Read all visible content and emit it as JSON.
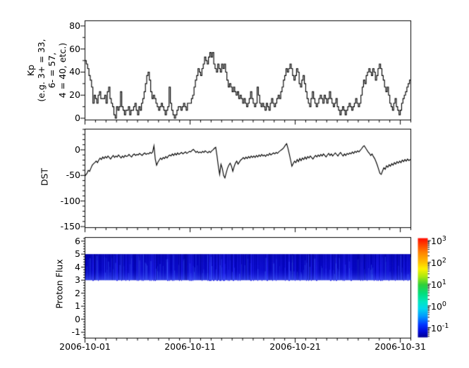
{
  "panels": {
    "kp": {
      "ylabel": "Kp\n(e.g. 3+ = 33,\n6- = 57,\n4 = 40, etc.)",
      "yticks": [
        "80",
        "60",
        "40",
        "20",
        "0"
      ]
    },
    "dst": {
      "ylabel": "DST",
      "yticks": [
        "0",
        "-50",
        "-100",
        "-150"
      ]
    },
    "proton": {
      "ylabel": "Proton Flux",
      "yticks": [
        "6",
        "5",
        "4",
        "3",
        "2",
        "1",
        "0",
        "-1"
      ]
    }
  },
  "xaxis": {
    "ticks": [
      "2006-10-01",
      "2006-10-11",
      "2006-10-21",
      "2006-10-31"
    ]
  },
  "colorbar": {
    "ticks": [
      {
        "base": "10",
        "exp": "3"
      },
      {
        "base": "10",
        "exp": "2"
      },
      {
        "base": "10",
        "exp": "1"
      },
      {
        "base": "10",
        "exp": "0"
      },
      {
        "base": "10",
        "exp": "-1"
      }
    ]
  },
  "chart_data": [
    {
      "type": "line",
      "title": "Kp index",
      "ylabel": "Kp (e.g. 3+ = 33, 6- = 57, 4 = 40, etc.)",
      "step": true,
      "x_start": "2006-10-01T00:00",
      "x_end": "2006-11-01T00:00",
      "cadence_hours": 3,
      "ylim": [
        -2,
        85
      ],
      "yticks": [
        0,
        20,
        40,
        60,
        80
      ],
      "xtick_labels": [
        "2006-10-01",
        "2006-10-11",
        "2006-10-21",
        "2006-10-31"
      ],
      "values": [
        50,
        47,
        43,
        37,
        33,
        27,
        13,
        20,
        17,
        13,
        20,
        23,
        17,
        17,
        17,
        20,
        13,
        23,
        27,
        17,
        13,
        10,
        3,
        0,
        10,
        7,
        10,
        23,
        10,
        7,
        3,
        7,
        7,
        10,
        3,
        7,
        7,
        10,
        13,
        7,
        3,
        10,
        7,
        13,
        17,
        23,
        30,
        37,
        40,
        33,
        23,
        17,
        20,
        17,
        13,
        10,
        7,
        10,
        13,
        10,
        7,
        3,
        7,
        10,
        27,
        13,
        7,
        3,
        0,
        3,
        7,
        10,
        10,
        7,
        10,
        13,
        10,
        7,
        13,
        13,
        13,
        17,
        20,
        27,
        33,
        37,
        43,
        40,
        37,
        43,
        47,
        53,
        50,
        47,
        53,
        57,
        53,
        57,
        47,
        43,
        40,
        47,
        43,
        40,
        47,
        43,
        47,
        40,
        33,
        27,
        30,
        27,
        23,
        27,
        23,
        20,
        23,
        17,
        20,
        17,
        13,
        17,
        13,
        10,
        13,
        17,
        23,
        17,
        13,
        10,
        13,
        27,
        20,
        13,
        10,
        13,
        10,
        7,
        13,
        10,
        7,
        13,
        17,
        13,
        10,
        13,
        17,
        20,
        17,
        23,
        27,
        33,
        37,
        43,
        40,
        43,
        47,
        43,
        37,
        33,
        37,
        43,
        40,
        30,
        27,
        33,
        37,
        30,
        23,
        17,
        13,
        10,
        17,
        23,
        17,
        13,
        10,
        13,
        17,
        20,
        17,
        13,
        20,
        17,
        13,
        17,
        23,
        17,
        13,
        10,
        13,
        17,
        10,
        7,
        3,
        7,
        10,
        7,
        3,
        7,
        10,
        13,
        10,
        7,
        10,
        13,
        17,
        13,
        10,
        13,
        20,
        27,
        33,
        30,
        37,
        40,
        43,
        40,
        37,
        43,
        40,
        33,
        37,
        43,
        47,
        43,
        37,
        33,
        27,
        23,
        27,
        20,
        13,
        10,
        7,
        13,
        17,
        10,
        7,
        3,
        7,
        13,
        17,
        20,
        23,
        27,
        30,
        33
      ]
    },
    {
      "type": "line",
      "title": "DST",
      "ylabel": "DST",
      "x_start": "2006-10-01T00:00",
      "x_end": "2006-11-01T00:00",
      "cadence_hours": 3,
      "ylim": [
        -152,
        41
      ],
      "yticks": [
        0,
        -50,
        -100,
        -150
      ],
      "xtick_labels": [
        "2006-10-01",
        "2006-10-11",
        "2006-10-21",
        "2006-10-31"
      ],
      "values": [
        -51,
        -46,
        -40,
        -42,
        -36,
        -30,
        -27,
        -25,
        -22,
        -25,
        -20,
        -16,
        -19,
        -14,
        -17,
        -13,
        -16,
        -12,
        -15,
        -18,
        -14,
        -11,
        -15,
        -12,
        -14,
        -10,
        -13,
        -16,
        -12,
        -15,
        -11,
        -13,
        -12,
        -9,
        -12,
        -14,
        -10,
        -8,
        -11,
        -9,
        -10,
        -7,
        -9,
        -11,
        -8,
        -6,
        -9,
        -7,
        -8,
        -5,
        -7,
        -4,
        8,
        -18,
        -30,
        -24,
        -20,
        -16,
        -19,
        -15,
        -17,
        -13,
        -16,
        -12,
        -10,
        -12,
        -8,
        -11,
        -7,
        -10,
        -6,
        -9,
        -7,
        -5,
        -8,
        -6,
        -4,
        -7,
        -5,
        -3,
        -4,
        -1,
        1,
        -2,
        -5,
        -3,
        -6,
        -4,
        -6,
        -3,
        -5,
        -2,
        -4,
        -6,
        -3,
        -5,
        -2,
        0,
        3,
        5,
        -12,
        -32,
        -48,
        -28,
        -36,
        -50,
        -55,
        -45,
        -36,
        -30,
        -26,
        -32,
        -42,
        -33,
        -26,
        -22,
        -28,
        -24,
        -20,
        -18,
        -15,
        -18,
        -14,
        -17,
        -13,
        -16,
        -12,
        -15,
        -12,
        -15,
        -11,
        -14,
        -10,
        -13,
        -9,
        -12,
        -10,
        -13,
        -9,
        -11,
        -7,
        -10,
        -8,
        -6,
        -8,
        -5,
        -7,
        -4,
        -2,
        0,
        2,
        5,
        9,
        12,
        3,
        -8,
        -20,
        -32,
        -27,
        -22,
        -25,
        -19,
        -23,
        -17,
        -21,
        -16,
        -19,
        -14,
        -18,
        -13,
        -16,
        -12,
        -15,
        -18,
        -14,
        -11,
        -14,
        -10,
        -13,
        -9,
        -12,
        -8,
        -11,
        -14,
        -10,
        -7,
        -11,
        -8,
        -12,
        -9,
        -6,
        -9,
        -12,
        -8,
        -5,
        -9,
        -12,
        -8,
        -11,
        -7,
        -9,
        -6,
        -8,
        -4,
        -7,
        -3,
        -5,
        -2,
        -4,
        -1,
        2,
        6,
        8,
        4,
        0,
        -4,
        -7,
        -11,
        -8,
        -13,
        -17,
        -23,
        -30,
        -38,
        -46,
        -48,
        -41,
        -35,
        -38,
        -31,
        -34,
        -29,
        -32,
        -27,
        -30,
        -25,
        -28,
        -23,
        -26,
        -22,
        -25,
        -20,
        -23,
        -19,
        -22,
        -18,
        -21,
        -19
      ]
    },
    {
      "type": "heatmap",
      "title": "Proton Flux",
      "ylabel": "Proton Flux",
      "x_range": [
        "2006-10-01",
        "2006-11-01"
      ],
      "ylim": [
        -1.5,
        6.3
      ],
      "yticks": [
        -1,
        0,
        1,
        2,
        3,
        4,
        5,
        6
      ],
      "band_y_extent": [
        3,
        5
      ],
      "band_value_range": [
        0.05,
        0.3
      ],
      "band_description": "continuous blue band (flux ~0.1) from y=3 to y=5 across the whole month; brighter blue vertical streaks rising from the lower edge",
      "color_scale": "log",
      "colormap": "rainbow (dark blue low to red high)",
      "colorbar_ticks": [
        "1e3",
        "1e2",
        "1e1",
        "1e0",
        "1e-1"
      ],
      "colorbar_range_approx": [
        0.035,
        1300
      ]
    }
  ]
}
